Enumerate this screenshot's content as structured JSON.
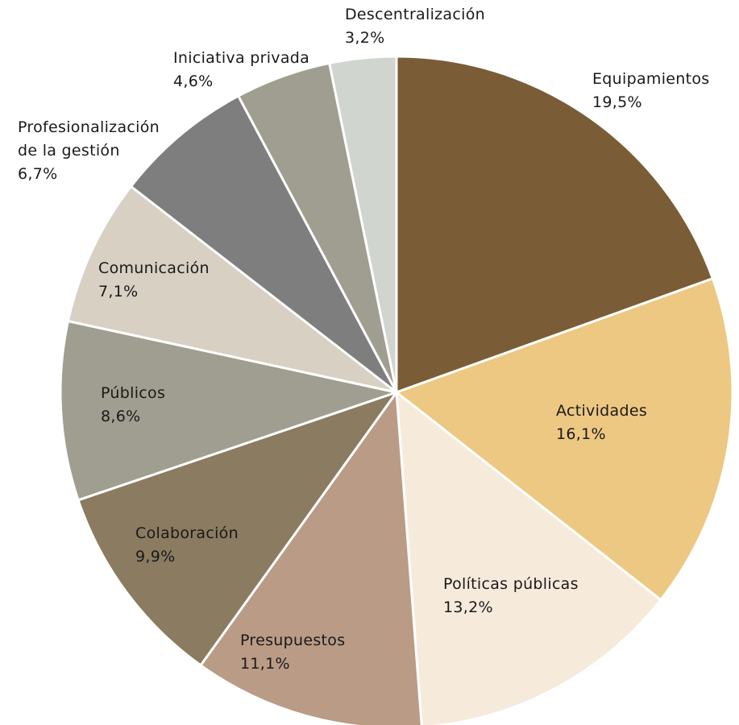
{
  "chart_data": {
    "type": "pie",
    "categories": [
      "Equipamientos",
      "Actividades",
      "Políticas públicas",
      "Presupuestos",
      "Colaboración",
      "Públicos",
      "Comunicación",
      "Profesionalización de la gestión",
      "Iniciativa privada",
      "Descentralización"
    ],
    "values": [
      19.5,
      16.1,
      13.2,
      11.1,
      9.9,
      8.6,
      7.1,
      6.7,
      4.6,
      3.2
    ],
    "value_labels": [
      "19,5%",
      "16,1%",
      "13,2%",
      "11,1%",
      "9,9%",
      "8,6%",
      "7,1%",
      "6,7%",
      "4,6%",
      "3,2%"
    ],
    "colors": [
      "#7a5c36",
      "#edc882",
      "#f6eadb",
      "#b99b86",
      "#8a7b61",
      "#a09e90",
      "#d7d0c3",
      "#7e7e7e",
      "#a09e90",
      "#d1d5d0"
    ]
  }
}
